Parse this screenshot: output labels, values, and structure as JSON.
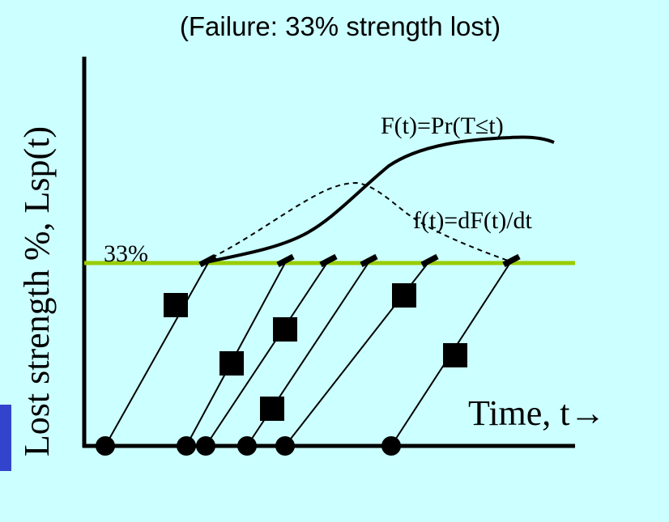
{
  "title": "(Failure: 33% strength lost)",
  "y_axis_label": "Lost strength %, Lsp(t)",
  "x_axis_label": "Time, t→",
  "threshold_label": "33%",
  "cdf_label": "F(t)=Pr(T≤t)",
  "pdf_label": "f(t)=dF(t)/dt",
  "colors": {
    "background": "#ccffff",
    "threshold_line": "#99cc00",
    "ink": "#000000",
    "side_tab": "#3344cc"
  }
}
